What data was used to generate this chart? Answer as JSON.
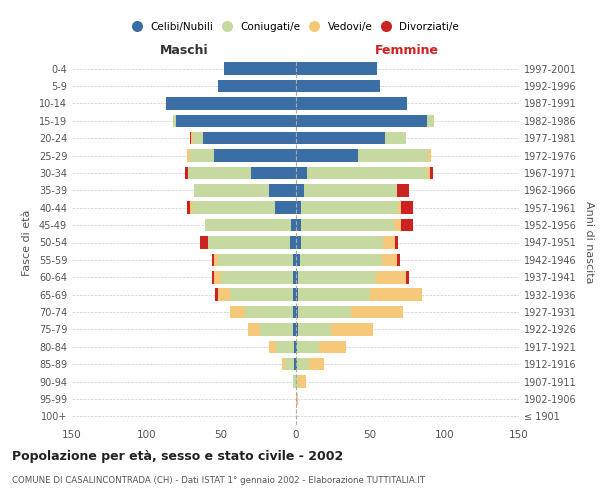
{
  "age_groups": [
    "100+",
    "95-99",
    "90-94",
    "85-89",
    "80-84",
    "75-79",
    "70-74",
    "65-69",
    "60-64",
    "55-59",
    "50-54",
    "45-49",
    "40-44",
    "35-39",
    "30-34",
    "25-29",
    "20-24",
    "15-19",
    "10-14",
    "5-9",
    "0-4"
  ],
  "birth_years": [
    "≤ 1901",
    "1902-1906",
    "1907-1911",
    "1912-1916",
    "1917-1921",
    "1922-1926",
    "1927-1931",
    "1932-1936",
    "1937-1941",
    "1942-1946",
    "1947-1951",
    "1952-1956",
    "1957-1961",
    "1962-1966",
    "1967-1971",
    "1972-1976",
    "1977-1981",
    "1982-1986",
    "1987-1991",
    "1992-1996",
    "1997-2001"
  ],
  "males_celibi": [
    0,
    0,
    0,
    1,
    1,
    2,
    2,
    2,
    2,
    2,
    4,
    3,
    14,
    18,
    30,
    55,
    62,
    80,
    87,
    52,
    48
  ],
  "males_coniugati": [
    0,
    0,
    2,
    6,
    12,
    22,
    32,
    42,
    48,
    50,
    55,
    58,
    55,
    50,
    42,
    16,
    7,
    2,
    0,
    0,
    0
  ],
  "males_vedovi": [
    0,
    0,
    0,
    2,
    5,
    8,
    10,
    8,
    5,
    3,
    0,
    0,
    2,
    0,
    0,
    2,
    1,
    0,
    0,
    0,
    0
  ],
  "males_divorziati": [
    0,
    0,
    0,
    0,
    0,
    0,
    0,
    2,
    1,
    1,
    5,
    0,
    2,
    0,
    2,
    0,
    1,
    0,
    0,
    0,
    0
  ],
  "females_nubili": [
    0,
    0,
    0,
    1,
    1,
    2,
    2,
    2,
    2,
    3,
    4,
    4,
    4,
    6,
    8,
    42,
    60,
    88,
    75,
    57,
    55
  ],
  "females_coniugate": [
    0,
    0,
    2,
    8,
    15,
    22,
    35,
    48,
    52,
    55,
    55,
    62,
    65,
    62,
    80,
    47,
    14,
    5,
    0,
    0,
    0
  ],
  "females_vedove": [
    0,
    2,
    5,
    10,
    18,
    28,
    35,
    35,
    20,
    10,
    8,
    5,
    2,
    0,
    2,
    2,
    0,
    0,
    0,
    0,
    0
  ],
  "females_divorziate": [
    0,
    0,
    0,
    0,
    0,
    0,
    0,
    0,
    2,
    2,
    2,
    8,
    8,
    8,
    2,
    0,
    0,
    0,
    0,
    0,
    0
  ],
  "color_celibi": "#3b6ea5",
  "color_coniugati": "#c5d9a0",
  "color_vedovi": "#f5c87a",
  "color_divorziati": "#cc2222",
  "xlim": 150,
  "title": "Popolazione per età, sesso e stato civile - 2002",
  "subtitle": "COMUNE DI CASALINCONTRADA (CH) - Dati ISTAT 1° gennaio 2002 - Elaborazione TUTTITALIA.IT",
  "ylabel_left": "Fasce di età",
  "ylabel_right": "Anni di nascita",
  "label_maschi": "Maschi",
  "label_femmine": "Femmine",
  "legend_labels": [
    "Celibi/Nubili",
    "Coniugati/e",
    "Vedovi/e",
    "Divorziati/e"
  ],
  "xtick_vals": [
    -150,
    -100,
    -50,
    0,
    50,
    100,
    150
  ]
}
